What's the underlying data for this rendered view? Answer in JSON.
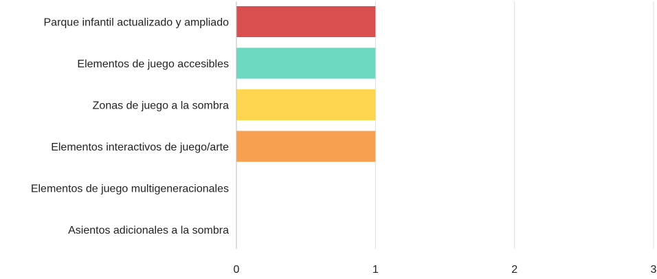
{
  "chart_data": {
    "type": "bar",
    "orientation": "horizontal",
    "categories": [
      "Parque infantil actualizado y ampliado",
      "Elementos de juego accesibles",
      "Zonas de juego a la sombra",
      "Elementos interactivos de juego/arte",
      "Elementos de juego multigeneracionales",
      "Asientos adicionales a la sombra"
    ],
    "values": [
      1,
      1,
      1,
      1,
      0,
      0
    ],
    "colors": [
      "#d94f50",
      "#6dd9c1",
      "#ffd54f",
      "#f7a150",
      "#999999",
      "#999999"
    ],
    "xlim": [
      0,
      3
    ],
    "xticks": [
      "0",
      "1",
      "2",
      "3"
    ],
    "grid": true,
    "legend": "none"
  }
}
